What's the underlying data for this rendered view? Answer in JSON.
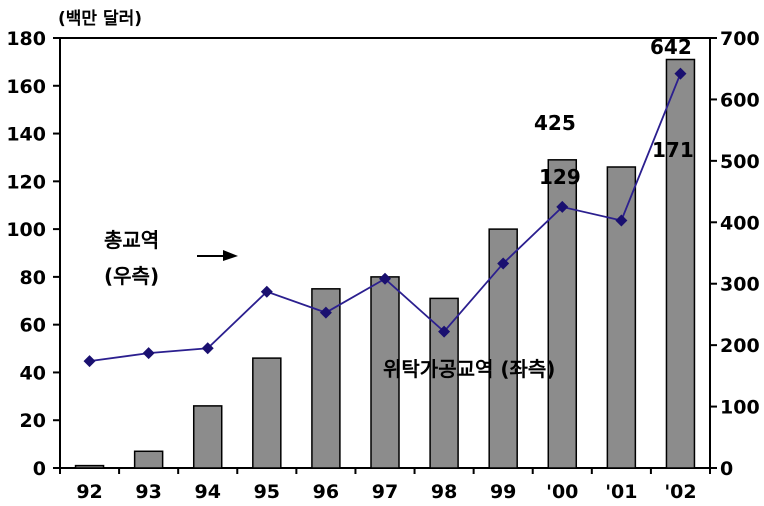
{
  "chart_data": {
    "type": "bar",
    "unit_label": "(백만 달러)",
    "categories": [
      "92",
      "93",
      "94",
      "95",
      "96",
      "97",
      "98",
      "99",
      "'00",
      "'01",
      "'02"
    ],
    "series": [
      {
        "name": "위탁가공교역 (좌측)",
        "type": "bar",
        "axis": "left",
        "values": [
          1,
          7,
          26,
          46,
          75,
          80,
          71,
          100,
          129,
          126,
          171
        ],
        "color": "#8c8c8c"
      },
      {
        "name": "총교역 (우측)",
        "type": "line",
        "axis": "right",
        "values": [
          174,
          187,
          195,
          287,
          253,
          308,
          222,
          333,
          425,
          403,
          642
        ],
        "color": "#2b1f8f",
        "marker_color": "#1a1070"
      }
    ],
    "left_axis": {
      "range": [
        0,
        180
      ],
      "ticks": [
        "0",
        "20",
        "40",
        "60",
        "80",
        "100",
        "120",
        "140",
        "160",
        "180"
      ]
    },
    "right_axis": {
      "range": [
        0,
        700
      ],
      "ticks": [
        "0",
        "100",
        "200",
        "300",
        "400",
        "500",
        "600",
        "700"
      ]
    },
    "annotations": {
      "total_trade_label_line1": "총교역",
      "total_trade_label_line2": "(우측)",
      "processing_trade_label": "위탁가공교역 (좌측)",
      "label_425": "425",
      "label_129": "129",
      "label_171": "171",
      "label_642": "642"
    },
    "grid": false,
    "legend": "none"
  }
}
